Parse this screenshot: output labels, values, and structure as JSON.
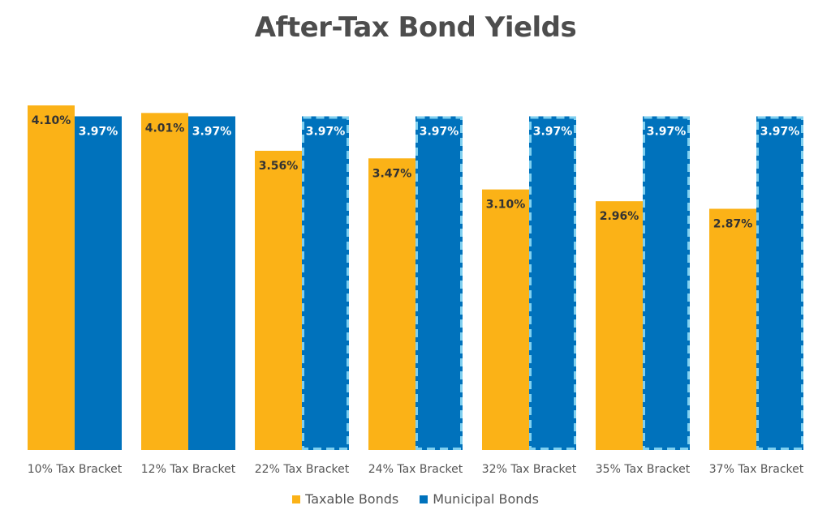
{
  "chart_data": {
    "type": "bar",
    "title": "After-Tax Bond Yields",
    "xlabel": "",
    "ylabel": "",
    "ylim": [
      0,
      4.1
    ],
    "grid": false,
    "legend_position": "bottom",
    "categories": [
      "10% Tax Bracket",
      "12% Tax Bracket",
      "22% Tax Bracket",
      "24% Tax Bracket",
      "32% Tax Bracket",
      "35% Tax Bracket",
      "37% Tax Bracket"
    ],
    "series": [
      {
        "name": "Taxable Bonds",
        "color": "#fbb217",
        "values": [
          4.1,
          4.01,
          3.56,
          3.47,
          3.1,
          2.96,
          2.87
        ],
        "labels": [
          "4.10%",
          "4.01%",
          "3.56%",
          "3.47%",
          "3.10%",
          "2.96%",
          "2.87%"
        ]
      },
      {
        "name": "Municipal Bonds",
        "color": "#0072bc",
        "highlight_color": "#7fd0f0",
        "highlighted": [
          false,
          false,
          true,
          true,
          true,
          true,
          true
        ],
        "values": [
          3.97,
          3.97,
          3.97,
          3.97,
          3.97,
          3.97,
          3.97
        ],
        "labels": [
          "3.97%",
          "3.97%",
          "3.97%",
          "3.97%",
          "3.97%",
          "3.97%",
          "3.97%"
        ]
      }
    ]
  }
}
